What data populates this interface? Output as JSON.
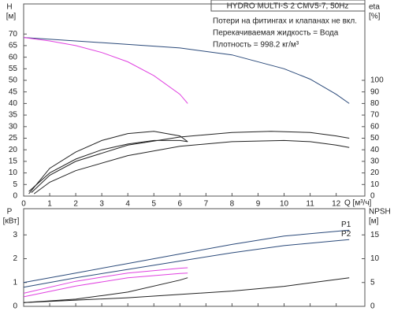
{
  "chart_data": [
    {
      "type": "line",
      "title": "HYDRO MULTI-S 2 CMV5-7, 50Hz",
      "notes": [
        "Потери на фитингах и клапанах не вкл.",
        "Перекачиваемая жидкость = Вода",
        "Плотность = 998.2 кг/м³"
      ],
      "ylabel": "H",
      "yunit": "[м]",
      "y2label": "eta",
      "y2unit": "[%]",
      "xlabel": "Q [м³/ч]",
      "xlim": [
        0,
        13.1
      ],
      "xticks": [
        0,
        1,
        2,
        3,
        4,
        5,
        6,
        7,
        8,
        9,
        10,
        11,
        12
      ],
      "ylim": [
        0,
        83
      ],
      "yticks": [
        0,
        5,
        10,
        15,
        20,
        25,
        30,
        35,
        40,
        45,
        50,
        55,
        60,
        65,
        70
      ],
      "y2lim": [
        0,
        166
      ],
      "y2ticks": [
        0,
        10,
        20,
        30,
        40,
        50,
        60,
        70,
        80,
        90,
        100
      ],
      "series": [
        {
          "color": "#2b4a7a",
          "x": [
            0,
            2,
            4,
            6,
            8,
            10,
            11,
            12,
            12.5
          ],
          "values": [
            68.5,
            67,
            65.5,
            64,
            61,
            55,
            50.5,
            44,
            40
          ]
        },
        {
          "color": "#e040e0",
          "x": [
            0,
            1,
            2,
            3,
            4,
            5,
            6,
            6.3
          ],
          "values": [
            68.5,
            67,
            65,
            62,
            58,
            52,
            44,
            40
          ]
        },
        {
          "color": "#222222",
          "axis": "y2",
          "x": [
            0.2,
            1,
            2,
            3,
            4,
            5,
            6,
            6.3
          ],
          "values": [
            2,
            24,
            38,
            48,
            54,
            56,
            52,
            47
          ]
        },
        {
          "color": "#222222",
          "axis": "y2",
          "x": [
            0.2,
            1,
            2,
            3,
            4,
            5,
            6,
            6.3
          ],
          "values": [
            4,
            20,
            32,
            40,
            45,
            48,
            48,
            47
          ]
        },
        {
          "color": "#222222",
          "axis": "y2",
          "x": [
            0.3,
            1,
            2,
            4,
            6,
            8,
            9.5,
            11,
            12,
            12.5
          ],
          "values": [
            3,
            18,
            30,
            44,
            51,
            55,
            56,
            55,
            52,
            50
          ]
        },
        {
          "color": "#222222",
          "axis": "y2",
          "x": [
            0.4,
            1,
            2,
            4,
            6,
            8,
            10,
            11,
            12,
            12.5
          ],
          "values": [
            2,
            12,
            22,
            35,
            43,
            47,
            48,
            47,
            44,
            42
          ]
        }
      ]
    },
    {
      "type": "line",
      "ylabel": "P",
      "yunit": "[кВт]",
      "y2label": "NPSH",
      "y2unit": "[м]",
      "ylim": [
        0,
        4.1
      ],
      "yticks": [
        0,
        1,
        2,
        3
      ],
      "y2lim": [
        0,
        20.5
      ],
      "y2ticks": [
        0,
        5,
        10,
        15
      ],
      "series": [
        {
          "name": "P1",
          "color": "#2b4a7a",
          "x": [
            0,
            2,
            4,
            6,
            8,
            10,
            12,
            12.5
          ],
          "values": [
            1.0,
            1.4,
            1.8,
            2.2,
            2.6,
            2.95,
            3.15,
            3.2
          ]
        },
        {
          "name": "P2",
          "color": "#2b4a7a",
          "x": [
            0,
            2,
            4,
            6,
            8,
            10,
            12,
            12.5
          ],
          "values": [
            0.8,
            1.2,
            1.55,
            1.9,
            2.25,
            2.55,
            2.75,
            2.8
          ]
        },
        {
          "color": "#e040e0",
          "x": [
            0,
            2,
            4,
            6,
            6.3
          ],
          "values": [
            0.55,
            1.05,
            1.4,
            1.6,
            1.62
          ]
        },
        {
          "color": "#e040e0",
          "x": [
            0,
            2,
            4,
            6,
            6.3
          ],
          "values": [
            0.4,
            0.85,
            1.2,
            1.38,
            1.4
          ]
        },
        {
          "color": "#222222",
          "axis": "y2",
          "x": [
            0,
            2,
            4,
            6,
            6.3
          ],
          "values": [
            0.8,
            1.5,
            3,
            5.5,
            6
          ]
        },
        {
          "color": "#222222",
          "axis": "y2",
          "x": [
            0,
            4,
            8,
            10,
            12.5
          ],
          "values": [
            0.8,
            1.8,
            3.2,
            4.2,
            6
          ]
        }
      ]
    }
  ]
}
